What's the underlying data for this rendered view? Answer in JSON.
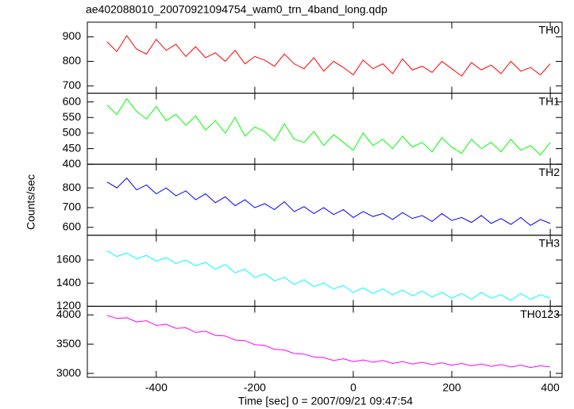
{
  "chart_data": {
    "type": "line",
    "title": "ae402088010_20070921094754_wam0_trn_4band_long.qdp",
    "x_label": "Time [sec] 0 = 2007/09/21 09:47:54",
    "y_label": "Counts/sec",
    "xlim": [
      -540,
      424
    ],
    "xticks": [
      -400,
      -200,
      0,
      200,
      400
    ],
    "x": [
      -500,
      -480,
      -460,
      -440,
      -420,
      -400,
      -380,
      -360,
      -340,
      -320,
      -300,
      -280,
      -260,
      -240,
      -220,
      -200,
      -180,
      -160,
      -140,
      -120,
      -100,
      -80,
      -60,
      -40,
      -20,
      0,
      20,
      40,
      60,
      80,
      100,
      120,
      140,
      160,
      180,
      200,
      220,
      240,
      260,
      280,
      300,
      320,
      340,
      360,
      380,
      400
    ],
    "series": [
      {
        "name": "TH0",
        "color": "#ff0000",
        "ylim": [
          670,
          960
        ],
        "yticks": [
          700,
          800,
          900
        ],
        "values": [
          880,
          840,
          905,
          850,
          830,
          890,
          845,
          870,
          820,
          860,
          815,
          835,
          800,
          845,
          790,
          820,
          805,
          780,
          830,
          790,
          770,
          815,
          760,
          800,
          775,
          745,
          805,
          770,
          790,
          750,
          810,
          765,
          780,
          755,
          800,
          770,
          740,
          795,
          765,
          785,
          750,
          800,
          760,
          775,
          745,
          790
        ]
      },
      {
        "name": "TH1",
        "color": "#00ff00",
        "ylim": [
          400,
          628
        ],
        "yticks": [
          400,
          450,
          500,
          550,
          600
        ],
        "values": [
          590,
          560,
          610,
          570,
          545,
          585,
          540,
          560,
          525,
          555,
          510,
          540,
          500,
          550,
          490,
          520,
          505,
          475,
          530,
          480,
          470,
          505,
          460,
          495,
          470,
          445,
          500,
          460,
          480,
          450,
          490,
          455,
          470,
          440,
          485,
          455,
          435,
          480,
          450,
          470,
          440,
          480,
          445,
          460,
          430,
          470
        ]
      },
      {
        "name": "TH2",
        "color": "#0000ff",
        "ylim": [
          560,
          920
        ],
        "yticks": [
          600,
          700,
          800
        ],
        "values": [
          830,
          800,
          850,
          790,
          815,
          770,
          800,
          760,
          785,
          740,
          770,
          725,
          755,
          710,
          740,
          700,
          720,
          690,
          730,
          680,
          705,
          670,
          700,
          665,
          690,
          650,
          680,
          655,
          670,
          640,
          675,
          645,
          660,
          630,
          670,
          635,
          650,
          625,
          660,
          620,
          645,
          615,
          650,
          610,
          640,
          620
        ]
      },
      {
        "name": "TH3",
        "color": "#00ffff",
        "ylim": [
          1200,
          1814
        ],
        "yticks": [
          1200,
          1400,
          1600
        ],
        "values": [
          1680,
          1630,
          1660,
          1610,
          1640,
          1590,
          1620,
          1570,
          1600,
          1550,
          1580,
          1520,
          1560,
          1490,
          1520,
          1450,
          1480,
          1420,
          1450,
          1390,
          1430,
          1370,
          1400,
          1350,
          1380,
          1320,
          1360,
          1310,
          1350,
          1300,
          1340,
          1290,
          1330,
          1280,
          1320,
          1270,
          1310,
          1260,
          1320,
          1270,
          1300,
          1250,
          1310,
          1260,
          1300,
          1270
        ]
      },
      {
        "name": "TH0123",
        "color": "#ff00ff",
        "ylim": [
          2933,
          4147
        ],
        "yticks": [
          3000,
          3500,
          4000
        ],
        "values": [
          3990,
          3940,
          3950,
          3880,
          3900,
          3820,
          3840,
          3770,
          3780,
          3700,
          3720,
          3650,
          3640,
          3570,
          3560,
          3490,
          3480,
          3410,
          3400,
          3340,
          3330,
          3280,
          3270,
          3220,
          3250,
          3200,
          3230,
          3190,
          3220,
          3170,
          3200,
          3160,
          3190,
          3150,
          3180,
          3140,
          3170,
          3130,
          3160,
          3120,
          3150,
          3110,
          3140,
          3100,
          3130,
          3110
        ]
      }
    ]
  }
}
